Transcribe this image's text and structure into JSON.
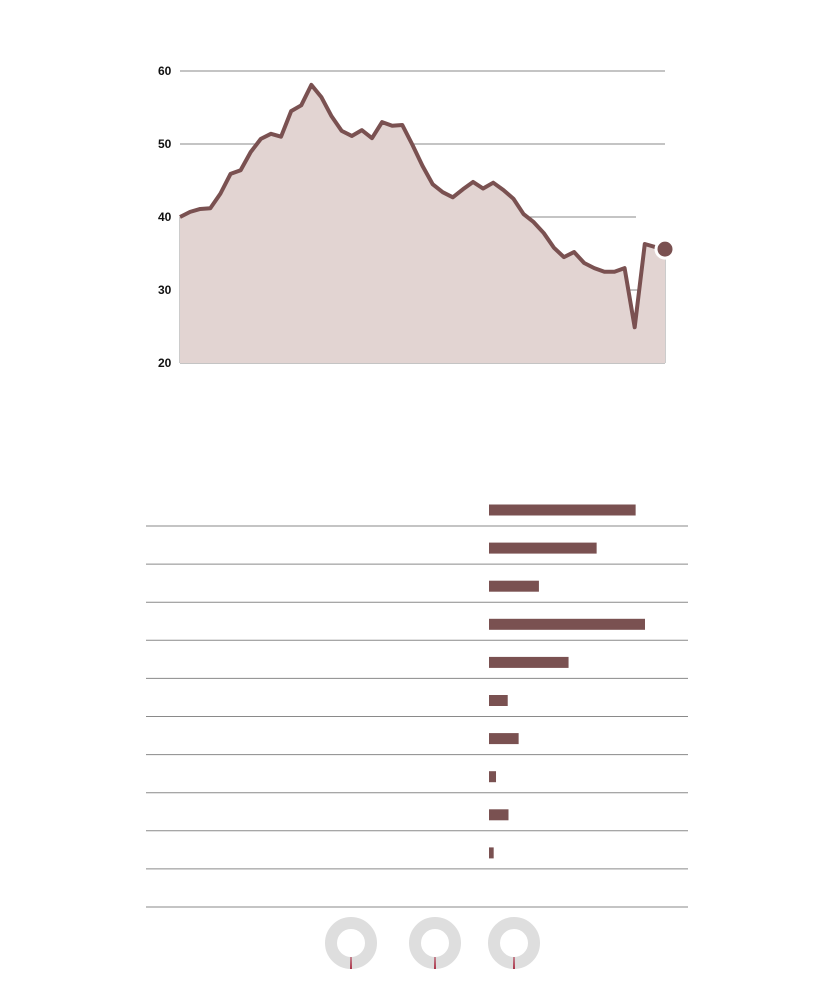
{
  "colors": {
    "line": "#7a5151",
    "area": "#e2d4d2",
    "grid": "#8a8a8a",
    "bar": "#7a5151",
    "donut_track": "#dedede",
    "donut_needle": "#a1102a"
  },
  "chart_data": [
    {
      "type": "area",
      "title": "",
      "xlabel": "",
      "ylabel": "",
      "ylim": [
        20,
        60
      ],
      "yticks": [
        "20",
        "30",
        "40",
        "50",
        "60"
      ],
      "grid": true,
      "values": [
        40.0,
        40.7,
        41.1,
        41.2,
        43.2,
        45.9,
        46.4,
        48.9,
        50.7,
        51.4,
        51.0,
        54.5,
        55.3,
        58.1,
        56.4,
        53.8,
        51.8,
        51.1,
        51.9,
        50.8,
        53.0,
        52.5,
        52.6,
        49.9,
        47.0,
        44.5,
        43.4,
        42.7,
        43.8,
        44.8,
        43.9,
        44.7,
        43.7,
        42.5,
        40.4,
        39.3,
        37.8,
        35.8,
        34.5,
        35.2,
        33.7,
        33.0,
        32.5,
        32.5,
        33.0,
        24.9,
        36.3,
        35.9,
        35.6
      ],
      "last_point_marker": true
    },
    {
      "type": "bar",
      "orientation": "horizontal",
      "values": [
        94,
        69,
        32,
        100,
        51,
        12,
        19,
        4.5,
        12.5,
        3
      ],
      "xlim": [
        0,
        100
      ]
    },
    {
      "type": "pie",
      "donuts": [
        {
          "value": 1
        },
        {
          "value": 1
        },
        {
          "value": 1
        }
      ],
      "max": 100
    }
  ]
}
